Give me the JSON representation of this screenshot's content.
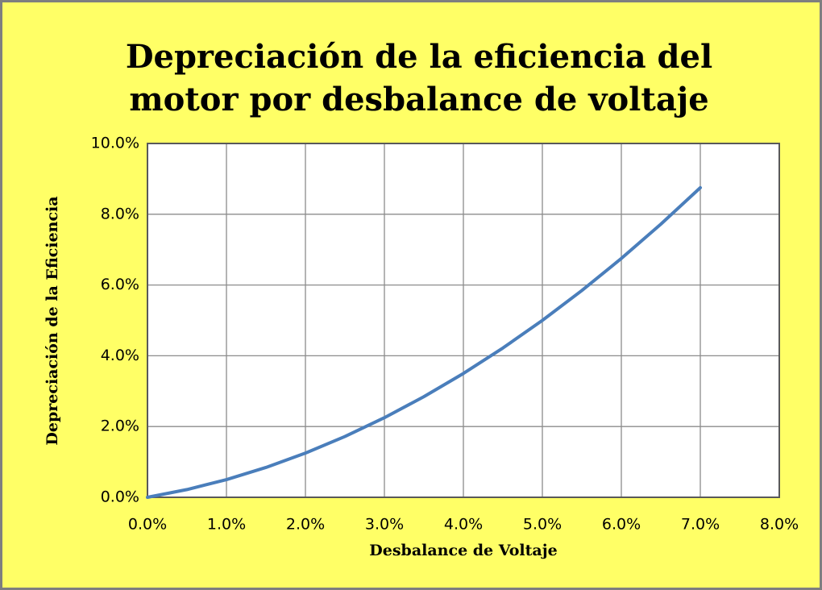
{
  "chart_data": {
    "type": "line",
    "title": [
      "Depreciación de la eficiencia del",
      "motor por desbalance de voltaje"
    ],
    "xlabel": "Desbalance de Voltaje",
    "ylabel": "Depreciación de la Eficiencia",
    "x": [
      0,
      0.5,
      1,
      1.5,
      2,
      2.5,
      3,
      3.5,
      4,
      4.5,
      5,
      5.5,
      6,
      6.5,
      7
    ],
    "series": [
      {
        "name": "Depreciación",
        "color": "#4a7ebb",
        "values": [
          0,
          0.21875,
          0.5,
          0.84375,
          1.25,
          1.71875,
          2.25,
          2.84375,
          3.5,
          4.21875,
          5,
          5.84375,
          6.75,
          7.71875,
          8.75
        ]
      }
    ],
    "xlim": [
      0,
      8
    ],
    "xticks": [
      {
        "value": 0,
        "label": "0.0%"
      },
      {
        "value": 1,
        "label": "1.0%"
      },
      {
        "value": 2,
        "label": "2.0%"
      },
      {
        "value": 3,
        "label": "3.0%"
      },
      {
        "value": 4,
        "label": "4.0%"
      },
      {
        "value": 5,
        "label": "5.0%"
      },
      {
        "value": 6,
        "label": "6.0%"
      },
      {
        "value": 7,
        "label": "7.0%"
      },
      {
        "value": 8,
        "label": "8.0%"
      }
    ],
    "ylim": [
      0,
      10
    ],
    "yticks": [
      {
        "value": 0,
        "label": "0.0%"
      },
      {
        "value": 2,
        "label": "2.0%"
      },
      {
        "value": 4,
        "label": "4.0%"
      },
      {
        "value": 6,
        "label": "6.0%"
      },
      {
        "value": 8,
        "label": "8.0%"
      },
      {
        "value": 10,
        "label": "10.0%"
      }
    ],
    "grid": true
  }
}
